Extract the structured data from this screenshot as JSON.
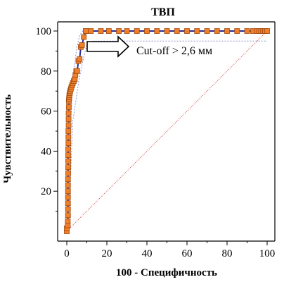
{
  "chart_data": {
    "type": "line",
    "title": "ТВП",
    "xlabel": "100 - Специфичность",
    "ylabel": "Чувствительность",
    "xlim": [
      0,
      100
    ],
    "ylim": [
      0,
      100
    ],
    "x_ticks": [
      0,
      20,
      40,
      60,
      80,
      100
    ],
    "y_ticks": [
      20,
      40,
      60,
      80,
      100
    ],
    "annotation": "Cut-off > 2,6 мм",
    "grid": false,
    "colors": {
      "roc_line": "#2b2b8f",
      "markers": "#f07f2a",
      "marker_edge": "#a04a10",
      "ci_band": "#9090c8",
      "reference_line": "#d04040",
      "axes": "#000000"
    },
    "series": [
      {
        "role": "roc",
        "x": [
          0,
          0,
          0.5,
          0.5,
          0.6,
          0.6,
          0.6,
          0.6,
          0.6,
          0.6,
          0.6,
          0.7,
          0.7,
          0.7,
          0.7,
          0.7,
          0.8,
          0.8,
          0.8,
          0.9,
          0.9,
          0.9,
          1.0,
          1.0,
          1.1,
          1.2,
          1.3,
          1.5,
          1.7,
          2.0,
          2.3,
          2.7,
          3.0,
          3.5,
          4.0,
          4.3,
          4.7,
          5.2,
          5.8,
          6.4,
          7.0,
          7.6,
          8.5,
          9.5
        ],
        "y": [
          0,
          1.5,
          3,
          5,
          8,
          11,
          14,
          17,
          20,
          23,
          26,
          29,
          32,
          35,
          38,
          41,
          44,
          47,
          50,
          53,
          56,
          59,
          62,
          65,
          66,
          67,
          68,
          69,
          70,
          71,
          72,
          73,
          74,
          75,
          76,
          78,
          80,
          80,
          85,
          86,
          92,
          93,
          97,
          100
        ]
      },
      {
        "role": "roc-plateau",
        "x": [
          9.5,
          12,
          17,
          21,
          26,
          30,
          35,
          40,
          45,
          50,
          55,
          60,
          65,
          70,
          75,
          80,
          85,
          90,
          93,
          95,
          96,
          97,
          98,
          99,
          100
        ],
        "y": [
          100,
          100,
          100,
          100,
          100,
          100,
          100,
          100,
          100,
          100,
          100,
          100,
          100,
          100,
          100,
          100,
          100,
          100,
          100,
          100,
          100,
          100,
          100,
          100,
          100
        ]
      },
      {
        "role": "ci-upper",
        "x": [
          0,
          1.5,
          2.5,
          3.5,
          5,
          6.5,
          8,
          9.5,
          10,
          100
        ],
        "y": [
          20,
          45,
          65,
          80,
          92,
          98,
          100,
          100,
          100,
          100
        ]
      },
      {
        "role": "ci-lower",
        "x": [
          0,
          2,
          3,
          4.5,
          6,
          8,
          10,
          13,
          100
        ],
        "y": [
          0,
          30,
          55,
          65,
          75,
          85,
          93,
          95,
          95
        ]
      }
    ]
  }
}
